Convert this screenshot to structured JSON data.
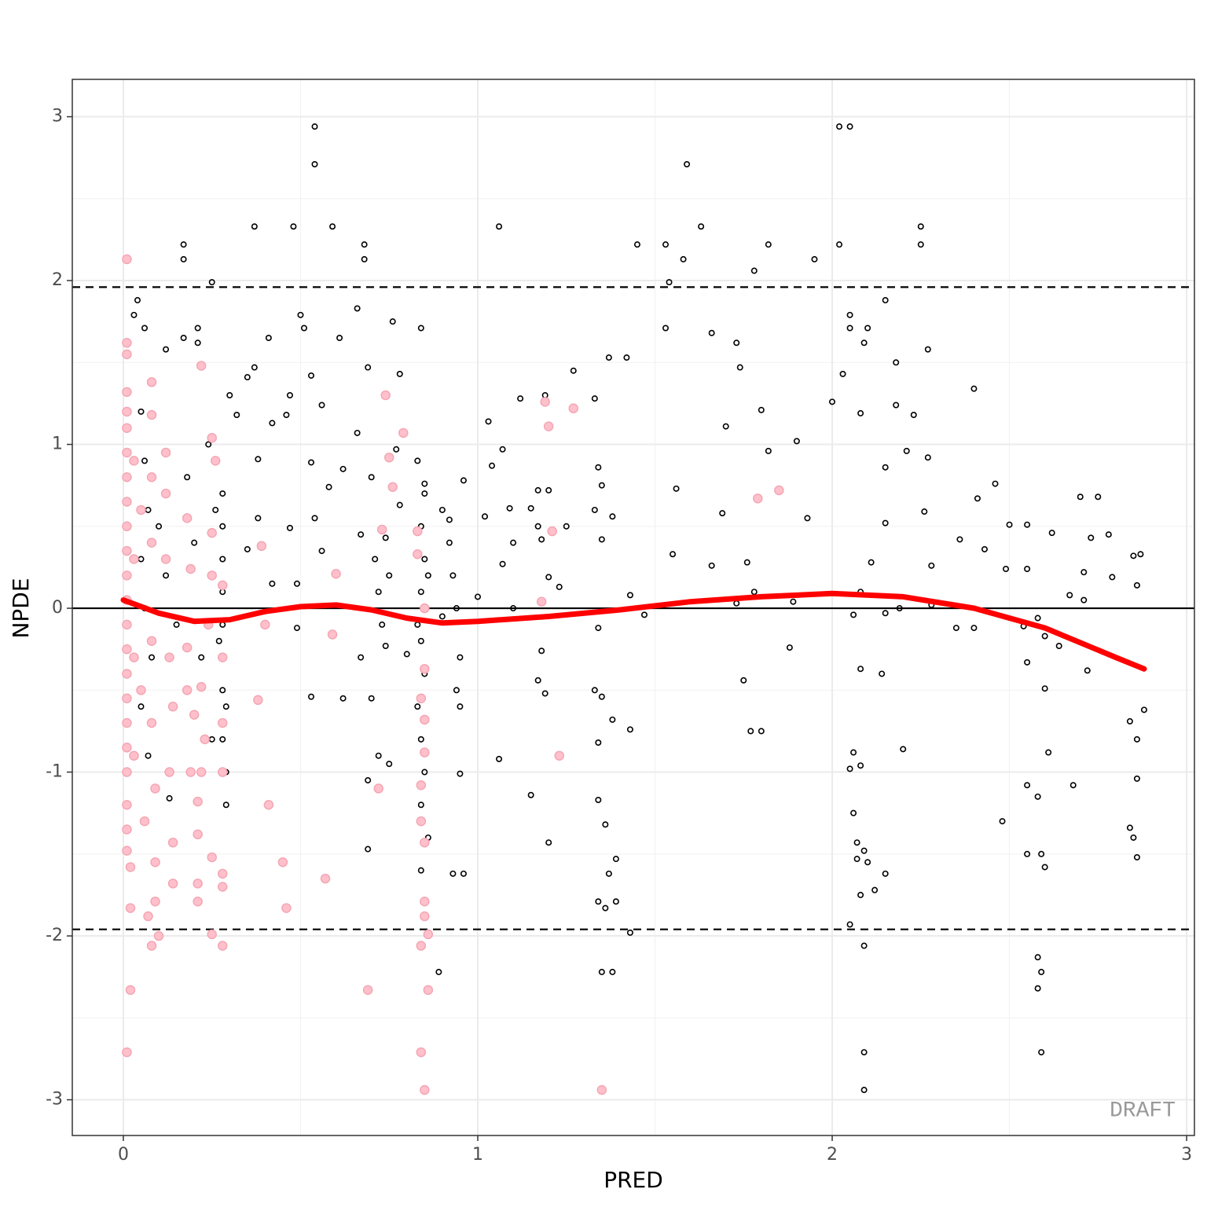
{
  "chart_data": {
    "type": "scatter",
    "x_label": "PRED",
    "y_label": "NPDE",
    "xlim": [
      -0.144,
      3.022
    ],
    "ylim": [
      -3.218,
      3.228
    ],
    "xticks": [
      0,
      1,
      2,
      3
    ],
    "yticks": [
      -3,
      -2,
      -1,
      0,
      1,
      2,
      3
    ],
    "xminorticks": [
      0.5,
      1.5,
      2.5
    ],
    "yminorticks": [
      -2.5,
      -1.5,
      -0.5,
      0.5,
      1.5,
      2.5
    ],
    "grid": true,
    "reference_lines": [
      0,
      1.96,
      -1.96
    ],
    "reference_line_styles": [
      "solid",
      "dashed",
      "dashed"
    ],
    "annotation": "DRAFT",
    "series": [
      {
        "color": "#000000",
        "marker": "open",
        "x": [
          0.54,
          2.02,
          2.05,
          0.54,
          1.59,
          0.37,
          0.48,
          0.59,
          1.06,
          1.63,
          2.25,
          0.17,
          0.68,
          1.45,
          1.53,
          1.82,
          2.02,
          2.25,
          0.17,
          0.68,
          1.58,
          1.95,
          1.78,
          0.25,
          1.54,
          0.04,
          2.15,
          0.66,
          0.03,
          0.5,
          2.05,
          0.06,
          0.21,
          0.51,
          0.84,
          1.53,
          2.05,
          2.1,
          0.76,
          0.17,
          0.41,
          0.61,
          1.66,
          0.12,
          0.21,
          1.73,
          2.09,
          2.27,
          1.37,
          1.42,
          2.18,
          0.37,
          0.69,
          1.74,
          1.27,
          0.35,
          0.53,
          0.78,
          2.03,
          0.3,
          0.47,
          0.56,
          1.19,
          2.4,
          1.33,
          1.12,
          2.0,
          2.18,
          0.42,
          0.46,
          1.03,
          1.7,
          2.08,
          2.23,
          1.8,
          0.32,
          0.66,
          0.77,
          1.07,
          1.82,
          1.9,
          2.21,
          2.27,
          0.62,
          0.53,
          0.38,
          1.04,
          1.34,
          2.15,
          2.46,
          0.58,
          0.85,
          1.56,
          1.35,
          2.41,
          2.75,
          2.7,
          0.96,
          1.17,
          1.2,
          0.78,
          1.09,
          1.33,
          1.69,
          1.93,
          2.26,
          0.38,
          0.54,
          1.02,
          1.17,
          2.5,
          2.55,
          1.25,
          0.92,
          1.15,
          1.38,
          0.47,
          0.67,
          0.74,
          1.1,
          1.18,
          1.35,
          2.15,
          2.36,
          2.62,
          2.73,
          2.78,
          0.35,
          0.56,
          1.55,
          1.76,
          2.11,
          2.43,
          2.87,
          2.85,
          1.07,
          1.66,
          2.28,
          2.49,
          2.55,
          2.71,
          1.2,
          2.79,
          0.42,
          0.49,
          1.23,
          2.86,
          1.78,
          1.43,
          2.08,
          2.67,
          2.71,
          1.0,
          1.73,
          2.28,
          1.89,
          1.1,
          2.19,
          1.47,
          2.06,
          2.15,
          2.4,
          2.35,
          2.58,
          2.6,
          2.54,
          1.34,
          0.49,
          1.18,
          1.88,
          2.55,
          2.64,
          2.08,
          2.14,
          1.75,
          2.72,
          2.6,
          0.74,
          0.8,
          1.17,
          0.53,
          0.62,
          0.7,
          1.33,
          1.35,
          1.19,
          1.77,
          1.8,
          2.84,
          2.88,
          2.86,
          1.38,
          1.43,
          1.34,
          2.06,
          2.08,
          2.05,
          2.2,
          2.61,
          2.55,
          2.68,
          2.58,
          2.86,
          1.06,
          0.95,
          1.15,
          1.34,
          1.36,
          2.48,
          2.84,
          2.85,
          2.06,
          2.07,
          2.09,
          2.1,
          2.07,
          2.12,
          2.15,
          2.08,
          0.69,
          1.2,
          1.39,
          1.37,
          0.93,
          0.96,
          2.86,
          2.55,
          2.59,
          2.6,
          1.34,
          1.39,
          1.36,
          2.05,
          1.43,
          2.09,
          0.89,
          1.35,
          1.38,
          2.58,
          2.59,
          2.58,
          2.09,
          2.59,
          2.09,
          0.28,
          0.28,
          0.28,
          0.28,
          0.28,
          0.28,
          0.28,
          0.29,
          0.28,
          0.29,
          0.29,
          0.27,
          0.85,
          0.84,
          0.85,
          0.83,
          0.84,
          0.85,
          0.84,
          0.86,
          0.84,
          0.85,
          0.84,
          0.85,
          0.83,
          0.86,
          0.83,
          0.84,
          0.05,
          0.06,
          0.07,
          0.05,
          0.06,
          0.08,
          0.05,
          0.07,
          0.1,
          0.12,
          0.15,
          0.18,
          0.2,
          0.22,
          0.24,
          0.26,
          0.25,
          0.13,
          0.94,
          0.95,
          0.94,
          0.95,
          0.92,
          0.93,
          0.9,
          0.9,
          0.71,
          0.72,
          0.73,
          0.75,
          0.7,
          0.72,
          0.69,
          0.75,
          0.67
        ],
        "values": [
          2.94,
          2.94,
          2.94,
          2.71,
          2.71,
          2.33,
          2.33,
          2.33,
          2.33,
          2.33,
          2.33,
          2.22,
          2.22,
          2.22,
          2.22,
          2.22,
          2.22,
          2.22,
          2.13,
          2.13,
          2.13,
          2.13,
          2.06,
          1.99,
          1.99,
          1.88,
          1.88,
          1.83,
          1.79,
          1.79,
          1.79,
          1.71,
          1.71,
          1.71,
          1.71,
          1.71,
          1.71,
          1.71,
          1.75,
          1.65,
          1.65,
          1.65,
          1.68,
          1.58,
          1.62,
          1.62,
          1.62,
          1.58,
          1.53,
          1.53,
          1.5,
          1.47,
          1.47,
          1.47,
          1.45,
          1.41,
          1.42,
          1.43,
          1.43,
          1.3,
          1.3,
          1.24,
          1.3,
          1.34,
          1.28,
          1.28,
          1.26,
          1.24,
          1.13,
          1.18,
          1.14,
          1.11,
          1.19,
          1.18,
          1.21,
          1.18,
          1.07,
          0.97,
          0.97,
          0.96,
          1.02,
          0.96,
          0.92,
          0.85,
          0.89,
          0.91,
          0.87,
          0.86,
          0.86,
          0.76,
          0.74,
          0.76,
          0.73,
          0.75,
          0.67,
          0.68,
          0.68,
          0.78,
          0.72,
          0.72,
          0.63,
          0.61,
          0.6,
          0.58,
          0.55,
          0.59,
          0.55,
          0.55,
          0.56,
          0.5,
          0.51,
          0.51,
          0.5,
          0.54,
          0.61,
          0.56,
          0.49,
          0.45,
          0.43,
          0.4,
          0.42,
          0.42,
          0.52,
          0.42,
          0.46,
          0.43,
          0.45,
          0.36,
          0.35,
          0.33,
          0.28,
          0.28,
          0.36,
          0.33,
          0.32,
          0.27,
          0.26,
          0.26,
          0.24,
          0.24,
          0.22,
          0.19,
          0.19,
          0.15,
          0.15,
          0.13,
          0.14,
          0.1,
          0.08,
          0.1,
          0.08,
          0.05,
          0.07,
          0.03,
          0.02,
          0.04,
          0.0,
          0.0,
          -0.04,
          -0.04,
          -0.03,
          -0.12,
          -0.12,
          -0.06,
          -0.17,
          -0.11,
          -0.12,
          -0.12,
          -0.26,
          -0.24,
          -0.33,
          -0.23,
          -0.37,
          -0.4,
          -0.44,
          -0.38,
          -0.49,
          -0.23,
          -0.28,
          -0.44,
          -0.54,
          -0.55,
          -0.55,
          -0.5,
          -0.54,
          -0.52,
          -0.75,
          -0.75,
          -0.69,
          -0.62,
          -0.8,
          -0.68,
          -0.74,
          -0.82,
          -0.88,
          -0.96,
          -0.98,
          -0.86,
          -0.88,
          -1.08,
          -1.08,
          -1.15,
          -1.04,
          -0.92,
          -1.01,
          -1.14,
          -1.17,
          -1.32,
          -1.3,
          -1.34,
          -1.4,
          -1.25,
          -1.43,
          -1.48,
          -1.55,
          -1.53,
          -1.72,
          -1.62,
          -1.75,
          -1.47,
          -1.43,
          -1.53,
          -1.62,
          -1.62,
          -1.62,
          -1.52,
          -1.5,
          -1.5,
          -1.58,
          -1.79,
          -1.79,
          -1.83,
          -1.93,
          -1.98,
          -2.06,
          -2.22,
          -2.22,
          -2.22,
          -2.13,
          -2.22,
          -2.32,
          -2.71,
          -2.71,
          -2.94,
          0.7,
          0.5,
          0.3,
          0.1,
          -0.1,
          -0.3,
          -0.5,
          -0.6,
          -0.8,
          -1.0,
          -1.2,
          -0.2,
          0.0,
          -0.2,
          -0.4,
          -0.6,
          -0.8,
          -1.0,
          -1.2,
          -1.4,
          -1.6,
          0.3,
          0.5,
          0.7,
          0.9,
          0.2,
          -0.1,
          0.1,
          1.2,
          0.9,
          0.6,
          0.3,
          0.0,
          -0.3,
          -0.6,
          -0.9,
          0.5,
          0.2,
          -0.1,
          0.8,
          0.4,
          -0.3,
          1.0,
          0.6,
          -0.8,
          -1.16,
          0.0,
          -0.3,
          -0.5,
          -0.6,
          0.4,
          0.2,
          0.6,
          -0.05,
          0.3,
          0.1,
          -0.1,
          0.2,
          0.8,
          -0.9,
          -1.05,
          -0.95,
          -0.3
        ]
      },
      {
        "color": "#ffc0cb",
        "marker": "filled",
        "x": [
          0.01,
          0.01,
          0.01,
          0.01,
          0.01,
          0.01,
          0.01,
          0.01,
          0.01,
          0.01,
          0.01,
          0.01,
          0.01,
          0.01,
          0.01,
          0.01,
          0.01,
          0.01,
          0.01,
          0.01,
          0.01,
          0.01,
          0.01,
          0.02,
          0.02,
          0.02,
          0.01,
          0.03,
          0.03,
          0.03,
          0.03,
          0.05,
          0.05,
          0.06,
          0.07,
          0.08,
          0.08,
          0.08,
          0.08,
          0.08,
          0.08,
          0.09,
          0.09,
          0.08,
          0.1,
          0.09,
          0.12,
          0.12,
          0.12,
          0.13,
          0.14,
          0.13,
          0.14,
          0.14,
          0.18,
          0.19,
          0.18,
          0.18,
          0.2,
          0.19,
          0.21,
          0.21,
          0.21,
          0.21,
          0.22,
          0.25,
          0.26,
          0.25,
          0.25,
          0.24,
          0.22,
          0.23,
          0.22,
          0.25,
          0.25,
          0.28,
          0.28,
          0.28,
          0.28,
          0.28,
          0.28,
          0.28,
          0.39,
          0.4,
          0.38,
          0.41,
          0.45,
          0.46,
          0.57,
          0.6,
          0.59,
          0.69,
          0.72,
          0.73,
          0.74,
          0.75,
          0.76,
          0.79,
          0.83,
          0.83,
          0.85,
          0.85,
          0.84,
          0.85,
          0.85,
          0.84,
          0.84,
          0.85,
          0.85,
          0.85,
          0.86,
          0.84,
          0.86,
          0.84,
          0.85,
          1.18,
          1.19,
          1.2,
          1.21,
          1.23,
          1.27,
          1.35,
          1.79,
          1.85
        ],
        "values": [
          2.13,
          1.62,
          1.55,
          1.32,
          1.2,
          1.1,
          0.95,
          0.8,
          0.65,
          0.5,
          0.35,
          0.2,
          0.05,
          -0.1,
          -0.25,
          -0.4,
          -0.55,
          -0.7,
          -0.85,
          -1.0,
          -1.2,
          -1.35,
          -1.48,
          -1.58,
          -1.83,
          -2.33,
          -2.71,
          0.9,
          0.3,
          -0.3,
          -0.9,
          0.6,
          -0.5,
          -1.3,
          -1.88,
          1.38,
          1.18,
          0.8,
          0.4,
          -0.2,
          -0.7,
          -1.1,
          -1.55,
          -2.06,
          -2.0,
          -1.79,
          0.95,
          0.7,
          0.3,
          -0.3,
          -0.6,
          -1.0,
          -1.43,
          -1.68,
          0.55,
          0.24,
          -0.24,
          -0.5,
          -0.65,
          -1.0,
          -1.18,
          -1.38,
          -1.68,
          -1.79,
          1.48,
          1.04,
          0.9,
          0.46,
          0.2,
          -0.1,
          -0.48,
          -0.8,
          -1.0,
          -1.52,
          -1.99,
          0.14,
          -0.3,
          -0.7,
          -1.0,
          -1.62,
          -1.7,
          -2.06,
          0.38,
          -0.1,
          -0.56,
          -1.2,
          -1.55,
          -1.83,
          -1.65,
          0.21,
          -0.16,
          -2.33,
          -1.1,
          0.48,
          1.3,
          0.92,
          0.74,
          1.07,
          0.47,
          0.33,
          0.0,
          -0.37,
          -0.55,
          -0.68,
          -0.88,
          -1.08,
          -1.3,
          -1.43,
          -1.79,
          -1.88,
          -1.99,
          -2.06,
          -2.33,
          -2.71,
          -2.94,
          0.04,
          1.26,
          1.11,
          0.47,
          -0.9,
          1.22,
          -2.94,
          0.67,
          0.72
        ]
      }
    ],
    "smooth": {
      "color": "#ff0000",
      "x": [
        0.0,
        0.1,
        0.2,
        0.3,
        0.4,
        0.5,
        0.6,
        0.7,
        0.8,
        0.9,
        1.0,
        1.2,
        1.4,
        1.6,
        1.8,
        2.0,
        2.2,
        2.4,
        2.6,
        2.8,
        2.88
      ],
      "values": [
        0.05,
        -0.03,
        -0.08,
        -0.07,
        -0.02,
        0.01,
        0.02,
        -0.01,
        -0.06,
        -0.09,
        -0.08,
        -0.05,
        -0.01,
        0.04,
        0.07,
        0.09,
        0.07,
        0.0,
        -0.12,
        -0.3,
        -0.37
      ]
    }
  }
}
